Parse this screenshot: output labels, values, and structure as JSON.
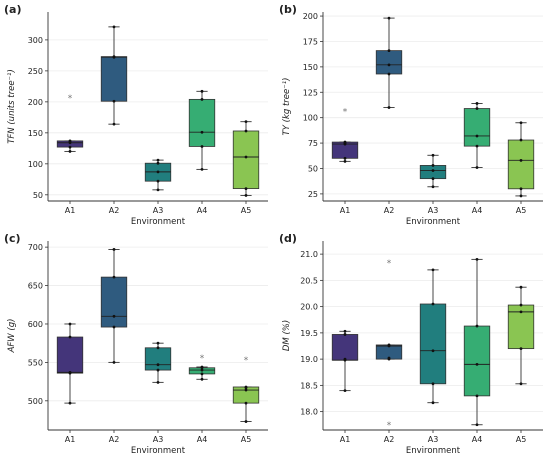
{
  "chart_data": [
    {
      "type": "box",
      "panel_label": "(a)",
      "ylabel": "TFN (units tree⁻¹)",
      "xlabel": "Environment",
      "ylim": [
        40,
        345
      ],
      "yticks": [
        50,
        100,
        150,
        200,
        250,
        300
      ],
      "grid": "horizontal",
      "categories": [
        "A1",
        "A2",
        "A3",
        "A4",
        "A5"
      ],
      "boxes": [
        {
          "category": "A1",
          "color": "#44357a",
          "whisker_low": 120,
          "q1": 127,
          "median": 134,
          "q3": 137,
          "whisker_high": 137,
          "outliers": [
            206
          ],
          "points": [
            120,
            127,
            134,
            136,
            137
          ]
        },
        {
          "category": "A2",
          "color": "#2f5b7f",
          "whisker_low": 164,
          "q1": 201,
          "median": 272,
          "q3": 273,
          "whisker_high": 321,
          "outliers": [],
          "points": [
            164,
            201,
            272,
            273,
            321
          ]
        },
        {
          "category": "A3",
          "color": "#217e7e",
          "whisker_low": 58,
          "q1": 72,
          "median": 87,
          "q3": 101,
          "whisker_high": 106,
          "outliers": [],
          "points": [
            58,
            72,
            87,
            101,
            106
          ]
        },
        {
          "category": "A4",
          "color": "#36ad73",
          "whisker_low": 91,
          "q1": 128,
          "median": 151,
          "q3": 204,
          "whisker_high": 217,
          "outliers": [],
          "points": [
            91,
            128,
            151,
            204,
            217
          ]
        },
        {
          "category": "A5",
          "color": "#8ac552",
          "whisker_low": 49,
          "q1": 60,
          "median": 111,
          "q3": 153,
          "whisker_high": 168,
          "outliers": [],
          "points": [
            49,
            60,
            111,
            153,
            168
          ]
        }
      ]
    },
    {
      "type": "box",
      "panel_label": "(b)",
      "ylabel": "TY (kg tree⁻¹)",
      "xlabel": "Environment",
      "ylim": [
        18,
        204
      ],
      "yticks": [
        25,
        50,
        75,
        100,
        125,
        150,
        175,
        200
      ],
      "grid": "horizontal",
      "categories": [
        "A1",
        "A2",
        "A3",
        "A4",
        "A5"
      ],
      "boxes": [
        {
          "category": "A1",
          "color": "#44357a",
          "whisker_low": 57,
          "q1": 60,
          "median": 74,
          "q3": 76,
          "whisker_high": 76,
          "outliers": [
            106
          ],
          "points": [
            57,
            60,
            74,
            75,
            76
          ]
        },
        {
          "category": "A2",
          "color": "#2f5b7f",
          "whisker_low": 110,
          "q1": 143,
          "median": 152,
          "q3": 166,
          "whisker_high": 198,
          "outliers": [],
          "points": [
            110,
            143,
            152,
            166,
            198
          ]
        },
        {
          "category": "A3",
          "color": "#217e7e",
          "whisker_low": 32,
          "q1": 40,
          "median": 48,
          "q3": 53,
          "whisker_high": 63,
          "outliers": [],
          "points": [
            32,
            40,
            48,
            53,
            63
          ]
        },
        {
          "category": "A4",
          "color": "#36ad73",
          "whisker_low": 51,
          "q1": 72,
          "median": 82,
          "q3": 109,
          "whisker_high": 114,
          "outliers": [],
          "points": [
            51,
            72,
            82,
            109,
            114
          ]
        },
        {
          "category": "A5",
          "color": "#8ac552",
          "whisker_low": 23,
          "q1": 30,
          "median": 58,
          "q3": 78,
          "whisker_high": 95,
          "outliers": [],
          "points": [
            23,
            30,
            58,
            78,
            95
          ]
        }
      ]
    },
    {
      "type": "box",
      "panel_label": "(c)",
      "ylabel": "AFW (g)",
      "xlabel": "Environment",
      "ylim": [
        462,
        708
      ],
      "yticks": [
        500,
        550,
        600,
        650,
        700
      ],
      "grid": "horizontal",
      "categories": [
        "A1",
        "A2",
        "A3",
        "A4",
        "A5"
      ],
      "boxes": [
        {
          "category": "A1",
          "color": "#44357a",
          "whisker_low": 497,
          "q1": 536,
          "median": 537,
          "q3": 583,
          "whisker_high": 600,
          "outliers": [],
          "points": [
            497,
            536,
            537,
            583,
            600
          ]
        },
        {
          "category": "A2",
          "color": "#2f5b7f",
          "whisker_low": 550,
          "q1": 596,
          "median": 610,
          "q3": 661,
          "whisker_high": 697,
          "outliers": [],
          "points": [
            550,
            596,
            610,
            661,
            697
          ]
        },
        {
          "category": "A3",
          "color": "#217e7e",
          "whisker_low": 524,
          "q1": 540,
          "median": 547,
          "q3": 569,
          "whisker_high": 575,
          "outliers": [],
          "points": [
            524,
            540,
            547,
            569,
            575
          ]
        },
        {
          "category": "A4",
          "color": "#36ad73",
          "whisker_low": 528,
          "q1": 535,
          "median": 540,
          "q3": 543,
          "whisker_high": 544,
          "outliers": [
            556
          ],
          "points": [
            528,
            535,
            540,
            543,
            544
          ]
        },
        {
          "category": "A5",
          "color": "#8ac552",
          "whisker_low": 473,
          "q1": 497,
          "median": 514,
          "q3": 518,
          "whisker_high": 518,
          "outliers": [
            553
          ],
          "points": [
            473,
            497,
            514,
            517,
            518
          ]
        }
      ]
    },
    {
      "type": "box",
      "panel_label": "(d)",
      "ylabel": "DM (%)",
      "xlabel": "Environment",
      "ylim": [
        17.65,
        21.25
      ],
      "yticks": [
        18.0,
        18.5,
        19.0,
        19.5,
        20.0,
        20.5,
        21.0
      ],
      "grid": "horizontal",
      "categories": [
        "A1",
        "A2",
        "A3",
        "A4",
        "A5"
      ],
      "boxes": [
        {
          "category": "A1",
          "color": "#44357a",
          "whisker_low": 18.4,
          "q1": 18.98,
          "median": 18.98,
          "q3": 19.47,
          "whisker_high": 19.53,
          "outliers": [],
          "points": [
            18.4,
            18.98,
            19.0,
            19.47,
            19.53
          ]
        },
        {
          "category": "A2",
          "color": "#2f5b7f",
          "whisker_low": 19.0,
          "q1": 19.0,
          "median": 19.25,
          "q3": 19.27,
          "whisker_high": 19.27,
          "outliers": [
            20.83,
            17.75
          ],
          "points": [
            19.0,
            19.02,
            19.25,
            19.27
          ]
        },
        {
          "category": "A3",
          "color": "#217e7e",
          "whisker_low": 18.17,
          "q1": 18.53,
          "median": 19.16,
          "q3": 20.05,
          "whisker_high": 20.7,
          "outliers": [],
          "points": [
            18.17,
            18.53,
            19.16,
            20.05,
            20.7
          ]
        },
        {
          "category": "A4",
          "color": "#36ad73",
          "whisker_low": 17.75,
          "q1": 18.3,
          "median": 18.9,
          "q3": 19.63,
          "whisker_high": 20.9,
          "outliers": [],
          "points": [
            17.75,
            18.3,
            18.9,
            19.63,
            20.9
          ]
        },
        {
          "category": "A5",
          "color": "#8ac552",
          "whisker_low": 18.53,
          "q1": 19.2,
          "median": 19.9,
          "q3": 20.03,
          "whisker_high": 20.37,
          "outliers": [],
          "points": [
            18.53,
            19.2,
            19.9,
            20.03,
            20.37
          ]
        }
      ]
    }
  ]
}
